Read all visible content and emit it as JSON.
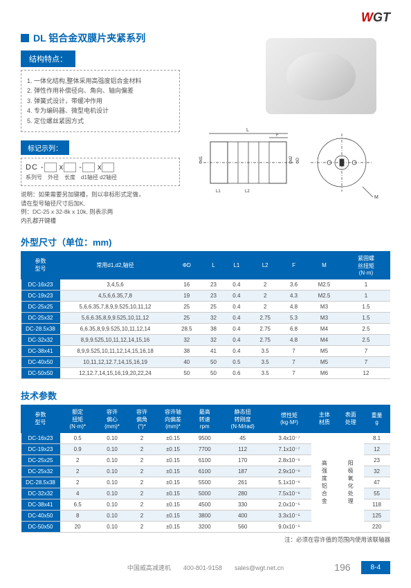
{
  "brand": {
    "w": "W",
    "gt": "GT"
  },
  "title": "DL 铝合金双膜片夹紧系列",
  "features_label": "结构特点：",
  "features": [
    "1. 一体化结构,整体采用高强度铝合金材料",
    "2. 弹性作用补偿径向、角向、轴向偏差",
    "3. 弹簧式设计，带缓冲作用",
    "4. 专为编码器、微型电机设计",
    "5. 定位螺丝紧固方式"
  ],
  "marking_label": "标记示列：",
  "marking_code": "DC -",
  "marking_code2": " x",
  "marking_code3": " -",
  "marking_code4": " x",
  "marking_sub": "系列号　外径　长度　d1轴径 d2轴径",
  "marking_desc": "说明：如果需要另加键槽，则以非标形式定做，\n请在型号轴径尺寸后加K,\n例：DC-25 x 32-8k x 10k, 则表示两\n内孔都开键槽",
  "dim_title": "外型尺寸（单位：mm)",
  "dim_headers": [
    "参数\n型号",
    "常用d1,d2,轴径",
    "ΦD",
    "L",
    "L1",
    "L2",
    "F",
    "M",
    "紧固螺\n丝扭矩\n(N·m)"
  ],
  "dim_rows": [
    [
      "DC-16x23",
      "3,4,5,6",
      "16",
      "23",
      "0.4",
      "2",
      "3.6",
      "M2.5",
      "1"
    ],
    [
      "DC-19x23",
      "4,5,6,6.35,7,8",
      "19",
      "23",
      "0.4",
      "2",
      "4.3",
      "M2.5",
      "1"
    ],
    [
      "DC-25x25",
      "5,6,6.35,7,8,9,9.525,10,11,12",
      "25",
      "25",
      "0.4",
      "2",
      "4.8",
      "M3",
      "1.5"
    ],
    [
      "DC-25x32",
      "5,6,6.35,8,9,9.525,10,11,12",
      "25",
      "32",
      "0.4",
      "2.75",
      "5.3",
      "M3",
      "1.5"
    ],
    [
      "DC-28.5x38",
      "6,6.35,8,9,9.525,10,11,12,14",
      "28.5",
      "38",
      "0.4",
      "2.75",
      "6.8",
      "M4",
      "2.5"
    ],
    [
      "DC-32x32",
      "8,9,9.525,10,11,12,14,15,16",
      "32",
      "32",
      "0.4",
      "2.75",
      "4.8",
      "M4",
      "2.5"
    ],
    [
      "DC-38x41",
      "8,9,9.525,10,11,12,14,15,16,18",
      "38",
      "41",
      "0.4",
      "3.5",
      "7",
      "M5",
      "7"
    ],
    [
      "DC-40x50",
      "10,11,12,12.7,14,15,16,19",
      "40",
      "50",
      "0.5",
      "3.5",
      "7",
      "M5",
      "7"
    ],
    [
      "DC-50x50",
      "12,12.7,14,15,16,19,20,22,24",
      "50",
      "50",
      "0.6",
      "3.5",
      "7",
      "M6",
      "12"
    ]
  ],
  "tech_title": "技术参数",
  "tech_headers": [
    "参数\n型号",
    "额定\n扭矩\n(N·m)*",
    "容许\n偏心\n(mm)*",
    "容许\n偏角\n(°)*",
    "容许轴\n向偏差\n(mm)*",
    "最高\n转速\nrpm",
    "静态扭\n转刚度\n(N·M/rad)",
    "惯性矩\n(kg·M²)",
    "主体\n材质",
    "表面\n处理",
    "重量\ng"
  ],
  "tech_rows": [
    [
      "DC-16x23",
      "0.5",
      "0.10",
      "2",
      "±0.15",
      "9500",
      "45",
      "3.4x10⁻⁷",
      "",
      "",
      "8.1"
    ],
    [
      "DC-19x23",
      "0.9",
      "0.10",
      "2",
      "±0.15",
      "7700",
      "112",
      "7.1x10⁻⁷",
      "",
      "",
      "12"
    ],
    [
      "DC-25x25",
      "2",
      "0.10",
      "2",
      "±0.15",
      "6100",
      "170",
      "2.8x10⁻⁶",
      "",
      "",
      "23"
    ],
    [
      "DC-25x32",
      "2",
      "0.10",
      "2",
      "±0.15",
      "6100",
      "187",
      "2.9x10⁻⁶",
      "",
      "",
      "32"
    ],
    [
      "DC-28.5x38",
      "2",
      "0.10",
      "2",
      "±0.15",
      "5500",
      "261",
      "5.1x10⁻⁶",
      "",
      "",
      "47"
    ],
    [
      "DC-32x32",
      "4",
      "0.10",
      "2",
      "±0.15",
      "5000",
      "280",
      "7.5x10⁻⁶",
      "",
      "",
      "55"
    ],
    [
      "DC-38x41",
      "6.5",
      "0.10",
      "2",
      "±0.15",
      "4500",
      "330",
      "2.0x10⁻⁵",
      "",
      "",
      "118"
    ],
    [
      "DC-40x50",
      "8",
      "0.10",
      "2",
      "±0.15",
      "3800",
      "400",
      "3.3x10⁻⁵",
      "",
      "",
      "125"
    ],
    [
      "DC-50x50",
      "20",
      "0.10",
      "2",
      "±0.15",
      "3200",
      "560",
      "9.0x10⁻⁵",
      "",
      "",
      "220"
    ]
  ],
  "material_merged": "高\n强\n度\n铝\n合\n金",
  "surface_merged": "阳\n极\n氧\n化\n处\n理",
  "tech_note": "注：必须在容许值的范围内使用该联轴器",
  "footer_company": "中国威高减速机",
  "footer_phone": "400-801-9158",
  "footer_email": "sales@wgt.net.cn",
  "page_num": "196",
  "page_tab": "8-4",
  "colors": {
    "blue": "#0066b3",
    "alt": "#eaf2f9"
  }
}
